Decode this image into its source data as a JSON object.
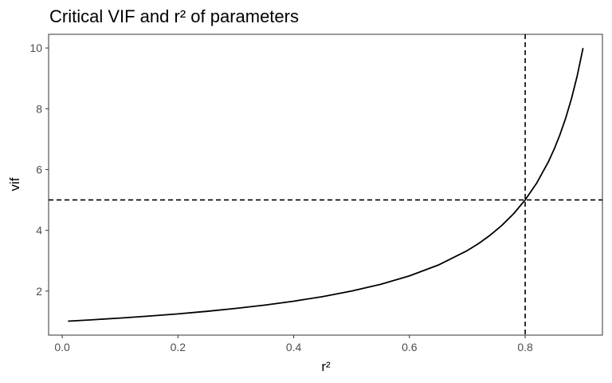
{
  "chart_data": {
    "type": "line",
    "title": "Critical VIF and r² of parameters",
    "xlabel": "r²",
    "ylabel": "vif",
    "xlim": [
      -0.0235,
      0.9335
    ],
    "ylim": [
      0.55,
      10.45
    ],
    "x_ticks": [
      0.0,
      0.2,
      0.4,
      0.6,
      0.8
    ],
    "x_tick_labels": [
      "0.0",
      "0.2",
      "0.4",
      "0.6",
      "0.8"
    ],
    "y_ticks": [
      2,
      4,
      6,
      8,
      10
    ],
    "y_tick_labels": [
      "2",
      "4",
      "6",
      "8",
      "10"
    ],
    "grid": false,
    "series": [
      {
        "x": [
          0.01,
          0.05,
          0.1,
          0.15,
          0.2,
          0.25,
          0.3,
          0.35,
          0.4,
          0.45,
          0.5,
          0.55,
          0.6,
          0.65,
          0.7,
          0.72,
          0.74,
          0.76,
          0.78,
          0.8,
          0.82,
          0.84,
          0.85,
          0.86,
          0.87,
          0.88,
          0.89,
          0.9
        ],
        "y": [
          1.01,
          1.053,
          1.111,
          1.176,
          1.25,
          1.333,
          1.429,
          1.538,
          1.667,
          1.818,
          2.0,
          2.222,
          2.5,
          2.857,
          3.333,
          3.571,
          3.846,
          4.167,
          4.545,
          5.0,
          5.556,
          6.25,
          6.667,
          7.143,
          7.692,
          8.333,
          9.091,
          10.0
        ],
        "color": "#000000"
      }
    ],
    "reference_lines": [
      {
        "orientation": "vertical",
        "value": 0.8,
        "style": "dashed",
        "color": "#000000"
      },
      {
        "orientation": "horizontal",
        "value": 5,
        "style": "dashed",
        "color": "#000000"
      }
    ]
  }
}
